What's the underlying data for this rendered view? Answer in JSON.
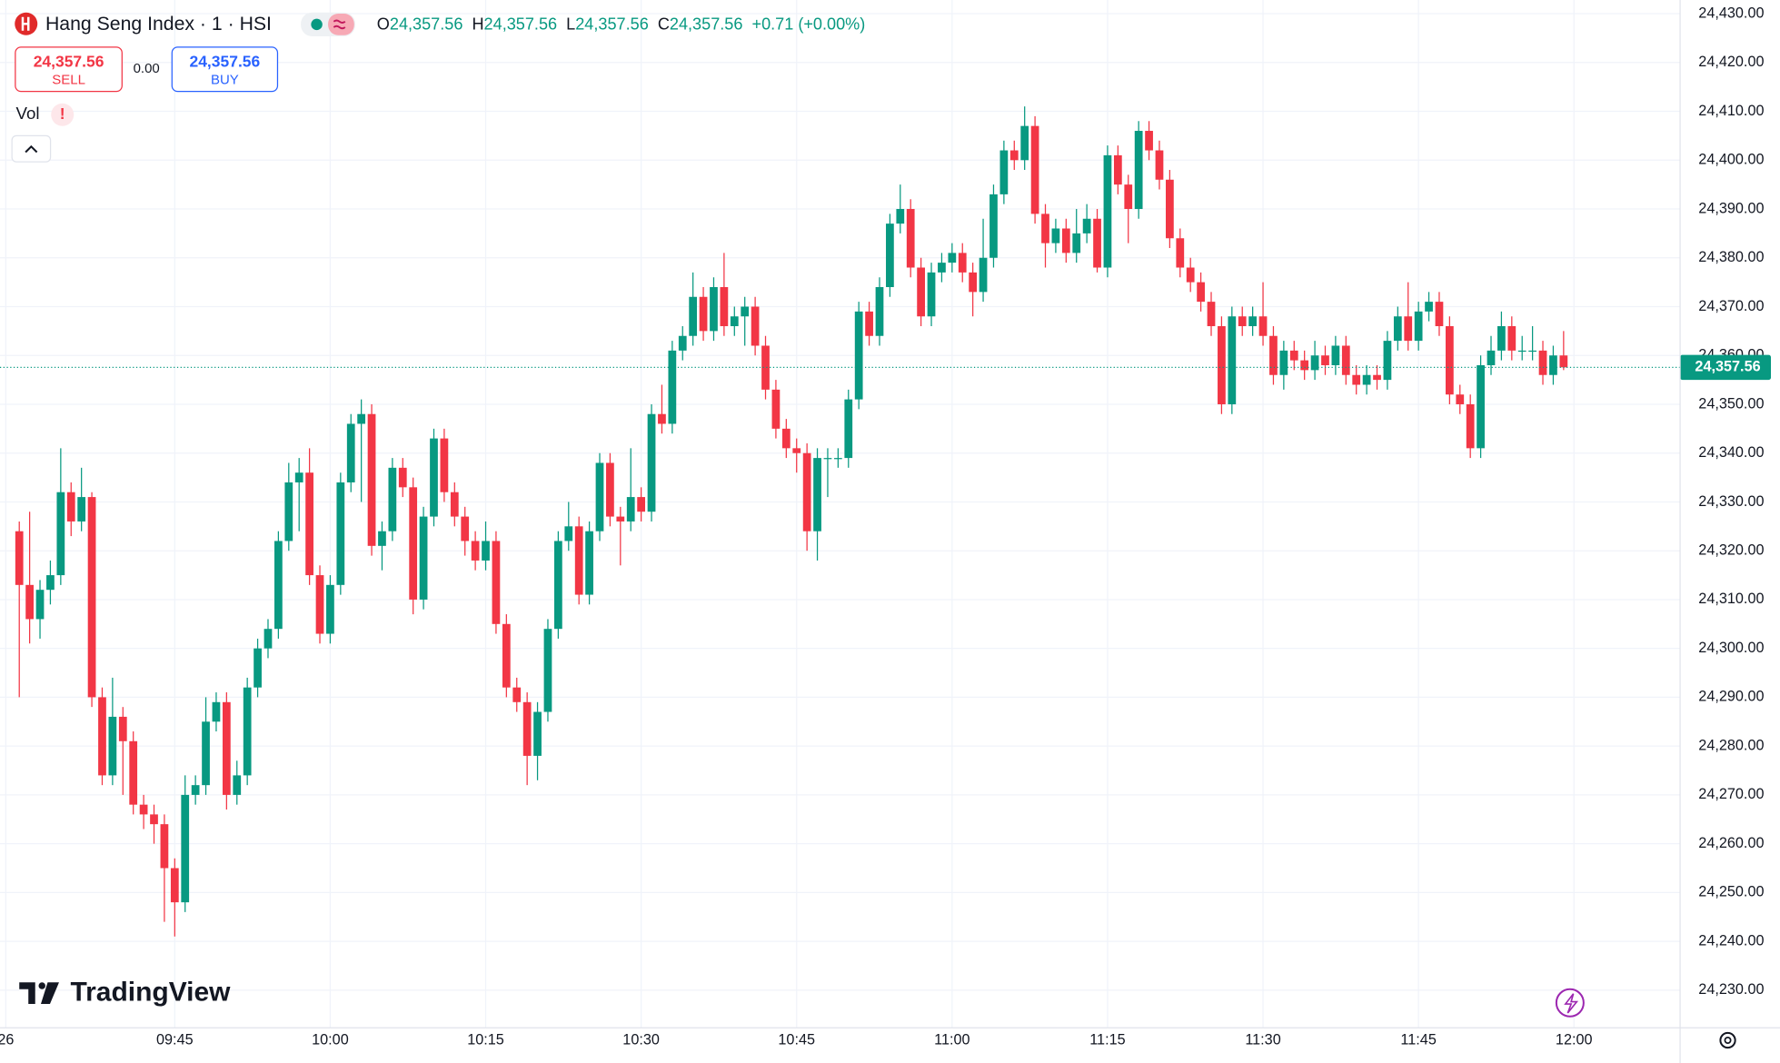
{
  "header": {
    "symbol": "Hang Seng Index · 1 · HSI",
    "ohlc": [
      {
        "key": "O",
        "value": "24,357.56"
      },
      {
        "key": "H",
        "value": "24,357.56"
      },
      {
        "key": "L",
        "value": "24,357.56"
      },
      {
        "key": "C",
        "value": "24,357.56"
      }
    ],
    "change": "+0.71 (+0.00%)"
  },
  "sell": {
    "price": "24,357.56",
    "label": "SELL"
  },
  "spread": "0.00",
  "buy": {
    "price": "24,357.56",
    "label": "BUY"
  },
  "indicator": {
    "name": "Vol",
    "alert": "!"
  },
  "watermark": "TradingView",
  "chart_data": {
    "type": "candlestick",
    "up_color": "#089981",
    "down_color": "#f23645",
    "grid": true,
    "open": [
      24324,
      24313,
      24306,
      24312,
      24315,
      24332,
      24326,
      24331,
      24290,
      24274,
      24286,
      24281,
      24268,
      24266,
      24264,
      24255,
      24248,
      24270,
      24272,
      24285,
      24289,
      24270,
      24274,
      24292,
      24300,
      24304,
      24322,
      24334,
      24336,
      24315,
      24303,
      24313,
      24334,
      24346,
      24348,
      24321,
      24324,
      24337,
      24333,
      24310,
      24327,
      24343,
      24332,
      24327,
      24322,
      24318,
      24322,
      24305,
      24292,
      24289,
      24278,
      24287,
      24304,
      24322,
      24325,
      24311,
      24324,
      24338,
      24327,
      24326,
      24331,
      24328,
      24348,
      24346,
      24361,
      24364,
      24372,
      24365,
      24374,
      24366,
      24368,
      24370,
      24362,
      24353,
      24345,
      24341,
      24340,
      24324,
      24339,
      24339,
      24339,
      24351,
      24369,
      24364,
      24374,
      24387,
      24390,
      24378,
      24368,
      24377,
      24379,
      24381,
      24377,
      24373,
      24380,
      24393,
      24402,
      24400,
      24407,
      24389,
      24383,
      24386,
      24381,
      24385,
      24388,
      24378,
      24401,
      24395,
      24390,
      24406,
      24402,
      24396,
      24384,
      24378,
      24375,
      24371,
      24366,
      24350,
      24368,
      24366,
      24368,
      24364,
      24356,
      24361,
      24359,
      24357,
      24360,
      24358,
      24362,
      24356,
      24354,
      24356,
      24355,
      24363,
      24368,
      24363,
      24369,
      24371,
      24366,
      24352,
      24350,
      24341,
      24358,
      24361,
      24366,
      24361,
      24361,
      24361,
      24356,
      24360
    ],
    "high": [
      24326,
      24328,
      24314,
      24318,
      24341,
      24334,
      24337,
      24332,
      24292,
      24294,
      24288,
      24283,
      24270,
      24268,
      24266,
      24257,
      24274,
      24274,
      24290,
      24291,
      24291,
      24277,
      24294,
      24302,
      24306,
      24324,
      24338,
      24339,
      24341,
      24317,
      24315,
      24336,
      24348,
      24351,
      24350,
      24326,
      24339,
      24339,
      24335,
      24329,
      24345,
      24345,
      24334,
      24329,
      24324,
      24326,
      24324,
      24307,
      24294,
      24291,
      24289,
      24306,
      24324,
      24330,
      24327,
      24326,
      24340,
      24340,
      24329,
      24341,
      24333,
      24350,
      24354,
      24363,
      24366,
      24377,
      24374,
      24376,
      24381,
      24370,
      24372,
      24372,
      24364,
      24355,
      24347,
      24343,
      24342,
      24341,
      24341,
      24341,
      24353,
      24371,
      24371,
      24376,
      24389,
      24395,
      24392,
      24380,
      24379,
      24381,
      24383,
      24383,
      24379,
      24388,
      24395,
      24404,
      24404,
      24411,
      24409,
      24391,
      24388,
      24388,
      24390,
      24391,
      24390,
      24403,
      24403,
      24397,
      24408,
      24408,
      24404,
      24398,
      24386,
      24380,
      24377,
      24373,
      24368,
      24370,
      24370,
      24370,
      24375,
      24366,
      24363,
      24363,
      24361,
      24363,
      24362,
      24364,
      24364,
      24358,
      24358,
      24358,
      24365,
      24370,
      24375,
      24371,
      24373,
      24373,
      24368,
      24354,
      24352,
      24360,
      24364,
      24369,
      24368,
      24364,
      24366,
      24363,
      24362,
      24365
    ],
    "low": [
      24290,
      24301,
      24302,
      24309,
      24313,
      24323,
      24324,
      24288,
      24272,
      24272,
      24270,
      24266,
      24263,
      24260,
      24244,
      24241,
      24246,
      24268,
      24270,
      24283,
      24267,
      24268,
      24272,
      24290,
      24298,
      24302,
      24320,
      24324,
      24313,
      24301,
      24301,
      24311,
      24332,
      24330,
      24319,
      24316,
      24322,
      24331,
      24307,
      24308,
      24325,
      24330,
      24325,
      24319,
      24316,
      24316,
      24303,
      24290,
      24287,
      24272,
      24273,
      24285,
      24302,
      24320,
      24309,
      24309,
      24322,
      24325,
      24317,
      24324,
      24326,
      24326,
      24344,
      24344,
      24359,
      24362,
      24363,
      24363,
      24364,
      24364,
      24362,
      24360,
      24351,
      24343,
      24339,
      24336,
      24320,
      24318,
      24331,
      24337,
      24337,
      24349,
      24362,
      24362,
      24372,
      24385,
      24376,
      24366,
      24366,
      24375,
      24377,
      24375,
      24368,
      24371,
      24378,
      24391,
      24398,
      24398,
      24387,
      24378,
      24381,
      24379,
      24379,
      24383,
      24377,
      24376,
      24393,
      24383,
      24388,
      24400,
      24394,
      24382,
      24376,
      24373,
      24369,
      24364,
      24348,
      24348,
      24364,
      24364,
      24362,
      24354,
      24353,
      24357,
      24355,
      24355,
      24356,
      24356,
      24354,
      24352,
      24352,
      24353,
      24353,
      24361,
      24361,
      24361,
      24367,
      24364,
      24350,
      24348,
      24339,
      24339,
      24356,
      24359,
      24359,
      24359,
      24359,
      24354,
      24354,
      24357
    ],
    "close": [
      24313,
      24306,
      24312,
      24315,
      24332,
      24326,
      24331,
      24290,
      24274,
      24286,
      24281,
      24268,
      24266,
      24264,
      24255,
      24248,
      24270,
      24272,
      24285,
      24289,
      24270,
      24274,
      24292,
      24300,
      24304,
      24322,
      24334,
      24336,
      24315,
      24303,
      24313,
      24334,
      24346,
      24348,
      24321,
      24324,
      24337,
      24333,
      24310,
      24327,
      24343,
      24332,
      24327,
      24322,
      24318,
      24322,
      24305,
      24292,
      24289,
      24278,
      24287,
      24304,
      24322,
      24325,
      24311,
      24324,
      24338,
      24327,
      24326,
      24331,
      24328,
      24348,
      24346,
      24361,
      24364,
      24372,
      24365,
      24374,
      24366,
      24368,
      24370,
      24362,
      24353,
      24345,
      24341,
      24340,
      24324,
      24339,
      24339,
      24339,
      24351,
      24369,
      24364,
      24374,
      24387,
      24390,
      24378,
      24368,
      24377,
      24379,
      24381,
      24377,
      24373,
      24380,
      24393,
      24402,
      24400,
      24407,
      24389,
      24383,
      24386,
      24381,
      24385,
      24388,
      24378,
      24401,
      24395,
      24390,
      24406,
      24402,
      24396,
      24384,
      24378,
      24375,
      24371,
      24366,
      24350,
      24368,
      24366,
      24368,
      24364,
      24356,
      24361,
      24359,
      24357,
      24360,
      24358,
      24362,
      24356,
      24354,
      24356,
      24355,
      24363,
      24368,
      24363,
      24369,
      24371,
      24366,
      24352,
      24350,
      24341,
      24358,
      24361,
      24366,
      24361,
      24361,
      24361,
      24356,
      24360,
      24357.56
    ],
    "xlim": [
      -1.86,
      160.24
    ],
    "xticks": [
      {
        "value": -1.3,
        "label": "26"
      },
      {
        "value": 15,
        "label": "09:45"
      },
      {
        "value": 30,
        "label": "10:00"
      },
      {
        "value": 45,
        "label": "10:15"
      },
      {
        "value": 60,
        "label": "10:30"
      },
      {
        "value": 75,
        "label": "10:45"
      },
      {
        "value": 90,
        "label": "11:00"
      },
      {
        "value": 105,
        "label": "11:15"
      },
      {
        "value": 120,
        "label": "11:30"
      },
      {
        "value": 135,
        "label": "11:45"
      },
      {
        "value": 150,
        "label": "12:00"
      }
    ],
    "ylim": [
      24222.3,
      24432.8
    ],
    "yticks": [
      {
        "value": 24230,
        "label": "24,230.00"
      },
      {
        "value": 24240,
        "label": "24,240.00"
      },
      {
        "value": 24250,
        "label": "24,250.00"
      },
      {
        "value": 24260,
        "label": "24,260.00"
      },
      {
        "value": 24270,
        "label": "24,270.00"
      },
      {
        "value": 24280,
        "label": "24,280.00"
      },
      {
        "value": 24290,
        "label": "24,290.00"
      },
      {
        "value": 24300,
        "label": "24,300.00"
      },
      {
        "value": 24310,
        "label": "24,310.00"
      },
      {
        "value": 24320,
        "label": "24,320.00"
      },
      {
        "value": 24330,
        "label": "24,330.00"
      },
      {
        "value": 24340,
        "label": "24,340.00"
      },
      {
        "value": 24350,
        "label": "24,350.00"
      },
      {
        "value": 24360,
        "label": "24,360.00"
      },
      {
        "value": 24370,
        "label": "24,370.00"
      },
      {
        "value": 24380,
        "label": "24,380.00"
      },
      {
        "value": 24390,
        "label": "24,390.00"
      },
      {
        "value": 24400,
        "label": "24,400.00"
      },
      {
        "value": 24410,
        "label": "24,410.00"
      },
      {
        "value": 24420,
        "label": "24,420.00"
      },
      {
        "value": 24430,
        "label": "24,430.00"
      }
    ],
    "last_price": {
      "value": 24357.56,
      "label": "24,357.56"
    },
    "last_color": "#089981"
  }
}
